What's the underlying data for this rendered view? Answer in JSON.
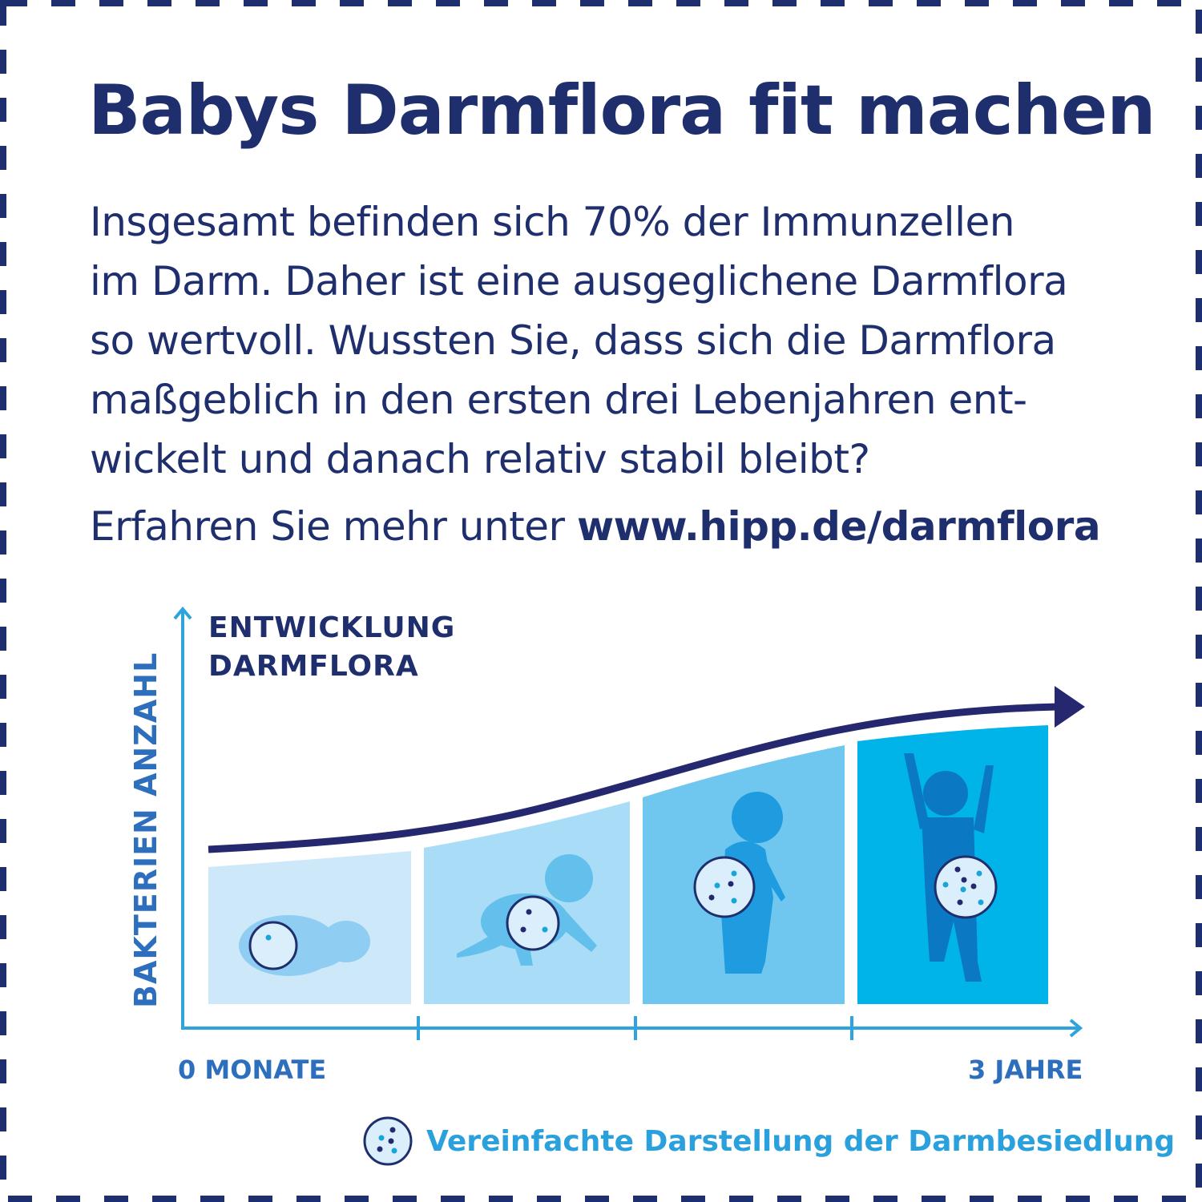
{
  "title": "Babys Darmflora fit machen",
  "body_lines": [
    "Insgesamt befinden sich 70% der Immunzellen",
    "im Darm. Daher ist eine ausgeglichene Darmflora",
    "so wertvoll. Wussten Sie, dass sich die Darmflora",
    "maßgeblich in den ersten drei Lebenjahren ent-",
    "wickelt und danach relativ stabil bleibt?"
  ],
  "more_prefix": "Erfahren Sie mehr unter ",
  "more_link": "www.hipp.de/darmflora",
  "diagram": {
    "title_line1": "ENTWICKLUNG",
    "title_line2": "DARMFLORA",
    "y_label": "BAKTERIEN ANZAHL",
    "x_start": "0 MONATE",
    "x_end": "3 JAHRE",
    "legend": "Vereinfachte Darstellung der Darmbesiedlung",
    "stages": [
      "newborn-lying",
      "crawling-baby",
      "standing-toddler",
      "child-arms-raised"
    ],
    "colors": {
      "navy": "#25286f",
      "axis": "#2fa3dc",
      "panel1": "#cde9f9",
      "panel2": "#a9dcf6",
      "panel3": "#6fc6ef",
      "panel4": "#00b4ea"
    }
  }
}
